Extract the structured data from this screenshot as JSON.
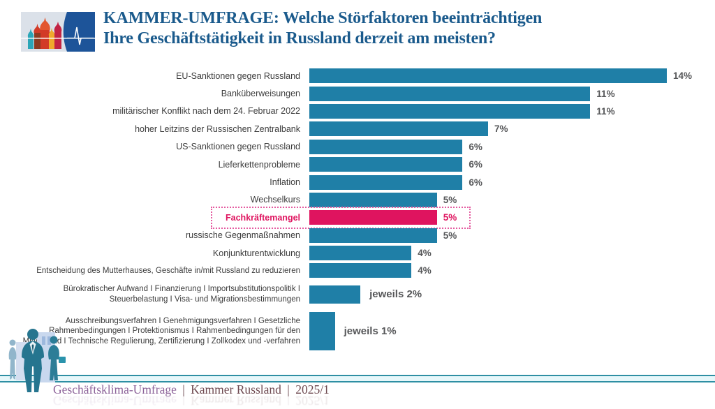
{
  "header": {
    "title_line1": "KAMMER-UMFRAGE: Welche Störfaktoren beeinträchtigen",
    "title_line2": "Ihre Geschäftstätigkeit in Russland derzeit am meisten?",
    "logo_icon": "st-basils-cathedral-pulse-logo"
  },
  "chart_data": {
    "type": "bar",
    "orientation": "horizontal",
    "unit": "%",
    "xlim": [
      0,
      15
    ],
    "grid": false,
    "legend": "none",
    "bars": [
      {
        "label": "EU-Sanktionen gegen Russland",
        "value": 14,
        "value_label": "14%"
      },
      {
        "label": "Banküberweisungen",
        "value": 11,
        "value_label": "11%"
      },
      {
        "label": "militärischer Konflikt nach dem 24. Februar 2022",
        "value": 11,
        "value_label": "11%"
      },
      {
        "label": "hoher Leitzins der Russischen Zentralbank",
        "value": 7,
        "value_label": "7%"
      },
      {
        "label": "US-Sanktionen gegen Russland",
        "value": 6,
        "value_label": "6%"
      },
      {
        "label": "Lieferkettenprobleme",
        "value": 6,
        "value_label": "6%"
      },
      {
        "label": "Inflation",
        "value": 6,
        "value_label": "6%"
      },
      {
        "label": "Wechselkurs",
        "value": 5,
        "value_label": "5%"
      },
      {
        "label": "Fachkräftemangel",
        "value": 5,
        "value_label": "5%",
        "highlighted": true
      },
      {
        "label": "russische Gegenmaßnahmen",
        "value": 5,
        "value_label": "5%"
      },
      {
        "label": "Konjunkturentwicklung",
        "value": 4,
        "value_label": "4%"
      },
      {
        "label": "Entscheidung des Mutterhauses, Geschäfte  in/mit Russland zu reduzieren",
        "value": 4,
        "value_label": "4%",
        "small": true
      },
      {
        "label": "Bürokratischer Aufwand I Finanzierung I Importsubstitutionspolitik I Steuerbelastung I Visa- und Migrationsbestimmungen",
        "value": 2,
        "value_label": "jeweils 2%",
        "small": true,
        "label_lines": 2
      },
      {
        "label": "Ausschreibungsverfahren I Genehmigungsverfahren I Gesetzliche Rahmenbedingungen I Protektionismus I Rahmenbedingungen für den Mittelstand I Technische Regulierung, Zertifizierung I Zollkodex und -verfahren",
        "value": 1,
        "value_label": "jeweils 1%",
        "small": true,
        "label_lines": 4
      }
    ],
    "colors": {
      "bar": "#1f7fa7",
      "highlight": "#df145f",
      "value_text": "#565759",
      "title_text": "#1a5a8c"
    }
  },
  "footer": {
    "survey_name": "Geschäftsklima-Umfrage",
    "separator": "|",
    "source": "Kammer Russland",
    "edition": "2025/1"
  }
}
